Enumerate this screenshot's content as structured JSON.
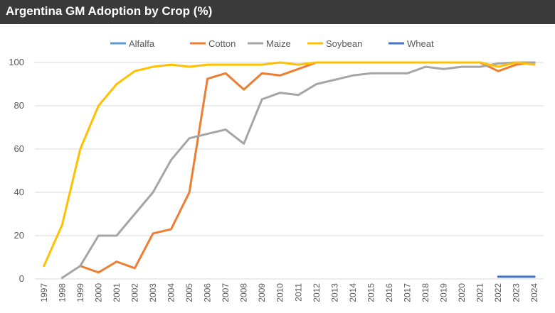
{
  "chart_data": {
    "type": "line",
    "title": "Argentina GM Adoption by Crop (%)",
    "xlabel": "",
    "ylabel": "",
    "ylim": [
      0,
      100
    ],
    "yticks": [
      0,
      20,
      40,
      60,
      80,
      100
    ],
    "grid": true,
    "legend_position": "top",
    "categories": [
      "1997",
      "1998",
      "1999",
      "2000",
      "2001",
      "2002",
      "2003",
      "2004",
      "2005",
      "2006",
      "2007",
      "2008",
      "2009",
      "2010",
      "2011",
      "2012",
      "2013",
      "2014",
      "2015",
      "2016",
      "2017",
      "2018",
      "2019",
      "2020",
      "2021",
      "2022",
      "2023",
      "2024"
    ],
    "series": [
      {
        "name": "Alfalfa",
        "color": "#5b9bd5",
        "values": [
          null,
          null,
          null,
          null,
          null,
          null,
          null,
          null,
          null,
          null,
          null,
          null,
          null,
          null,
          null,
          null,
          null,
          null,
          null,
          null,
          null,
          null,
          null,
          null,
          null,
          null,
          null,
          null
        ]
      },
      {
        "name": "Cotton",
        "color": "#ed7d31",
        "values": [
          null,
          null,
          6,
          3,
          8,
          5,
          21,
          23,
          40,
          92.5,
          95,
          87.5,
          95,
          94,
          97,
          100,
          100,
          100,
          100,
          100,
          100,
          100,
          100,
          100,
          100,
          96,
          99,
          100
        ]
      },
      {
        "name": "Maize",
        "color": "#a5a5a5",
        "values": [
          null,
          0.5,
          6,
          20,
          20,
          30,
          40,
          55,
          65,
          67,
          69,
          62.5,
          83,
          86,
          85,
          90,
          92,
          94,
          95,
          95,
          95,
          98,
          97,
          98,
          98,
          99.5,
          100,
          100
        ]
      },
      {
        "name": "Soybean",
        "color": "#ffc000",
        "values": [
          6,
          25,
          60,
          80,
          90,
          96,
          98,
          99,
          98,
          99,
          99,
          99,
          99,
          100,
          99,
          100,
          100,
          100,
          100,
          100,
          100,
          100,
          100,
          100,
          100,
          98,
          100,
          99
        ]
      },
      {
        "name": "Wheat",
        "color": "#4472c4",
        "values": [
          null,
          null,
          null,
          null,
          null,
          null,
          null,
          null,
          null,
          null,
          null,
          null,
          null,
          null,
          null,
          null,
          null,
          null,
          null,
          null,
          null,
          null,
          null,
          null,
          null,
          1,
          1,
          1
        ]
      }
    ]
  }
}
